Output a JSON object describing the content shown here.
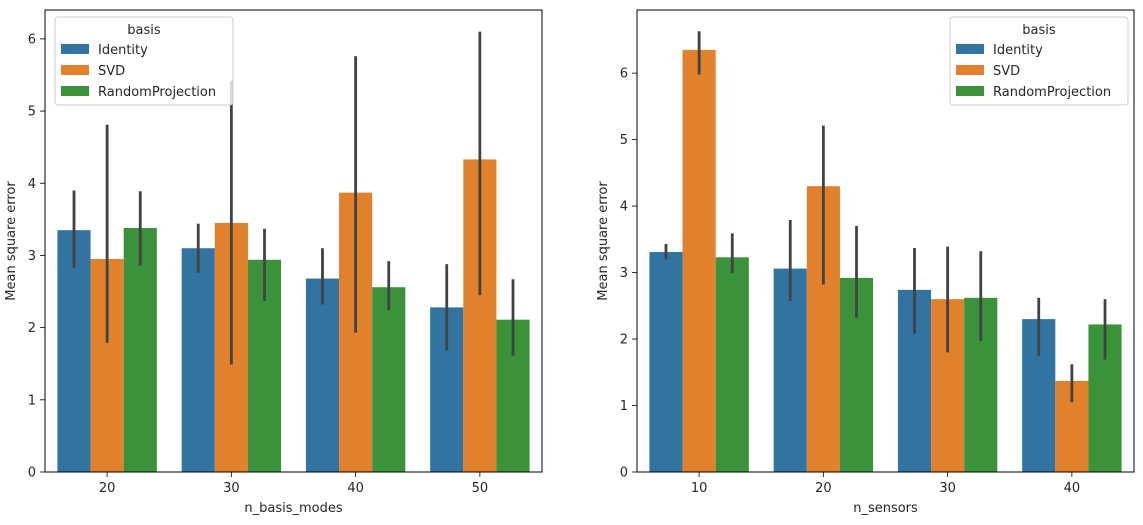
{
  "chart_data": [
    {
      "type": "bar",
      "xlabel": "n_basis_modes",
      "ylabel": "Mean square error",
      "categories": [
        "20",
        "30",
        "40",
        "50"
      ],
      "ylim": [
        0,
        6.4
      ],
      "yticks": [
        0,
        1,
        2,
        3,
        4,
        5,
        6
      ],
      "legend": {
        "title": "basis",
        "position": "top-left"
      },
      "series": [
        {
          "name": "Identity",
          "color": "#3274a1",
          "values": [
            3.35,
            3.1,
            2.68,
            2.28
          ],
          "ci_low": [
            2.83,
            2.76,
            2.32,
            1.68
          ],
          "ci_high": [
            3.9,
            3.44,
            3.1,
            2.88
          ]
        },
        {
          "name": "SVD",
          "color": "#e1812c",
          "values": [
            2.95,
            3.45,
            3.87,
            4.33
          ],
          "ci_low": [
            1.79,
            1.49,
            1.93,
            2.45
          ],
          "ci_high": [
            4.81,
            5.42,
            5.76,
            6.1
          ]
        },
        {
          "name": "RandomProjection",
          "color": "#3a923a",
          "values": [
            3.38,
            2.94,
            2.56,
            2.11
          ],
          "ci_low": [
            2.86,
            2.37,
            2.24,
            1.61
          ],
          "ci_high": [
            3.89,
            3.37,
            2.92,
            2.67
          ]
        }
      ]
    },
    {
      "type": "bar",
      "xlabel": "n_sensors",
      "ylabel": "Mean square error",
      "categories": [
        "10",
        "20",
        "30",
        "40"
      ],
      "ylim": [
        0,
        6.95
      ],
      "yticks": [
        0,
        1,
        2,
        3,
        4,
        5,
        6
      ],
      "legend": {
        "title": "basis",
        "position": "top-right"
      },
      "series": [
        {
          "name": "Identity",
          "color": "#3274a1",
          "values": [
            3.31,
            3.06,
            2.74,
            2.3
          ],
          "ci_low": [
            3.2,
            2.57,
            2.08,
            1.75
          ],
          "ci_high": [
            3.43,
            3.79,
            3.37,
            2.62
          ]
        },
        {
          "name": "SVD",
          "color": "#e1812c",
          "values": [
            6.35,
            4.3,
            2.6,
            1.37
          ],
          "ci_low": [
            5.98,
            2.82,
            1.8,
            1.05
          ],
          "ci_high": [
            6.63,
            5.21,
            3.39,
            1.62
          ]
        },
        {
          "name": "RandomProjection",
          "color": "#3a923a",
          "values": [
            3.23,
            2.92,
            2.62,
            2.22
          ],
          "ci_low": [
            2.99,
            2.32,
            1.97,
            1.69
          ],
          "ci_high": [
            3.59,
            3.7,
            3.32,
            2.6
          ]
        }
      ]
    }
  ]
}
